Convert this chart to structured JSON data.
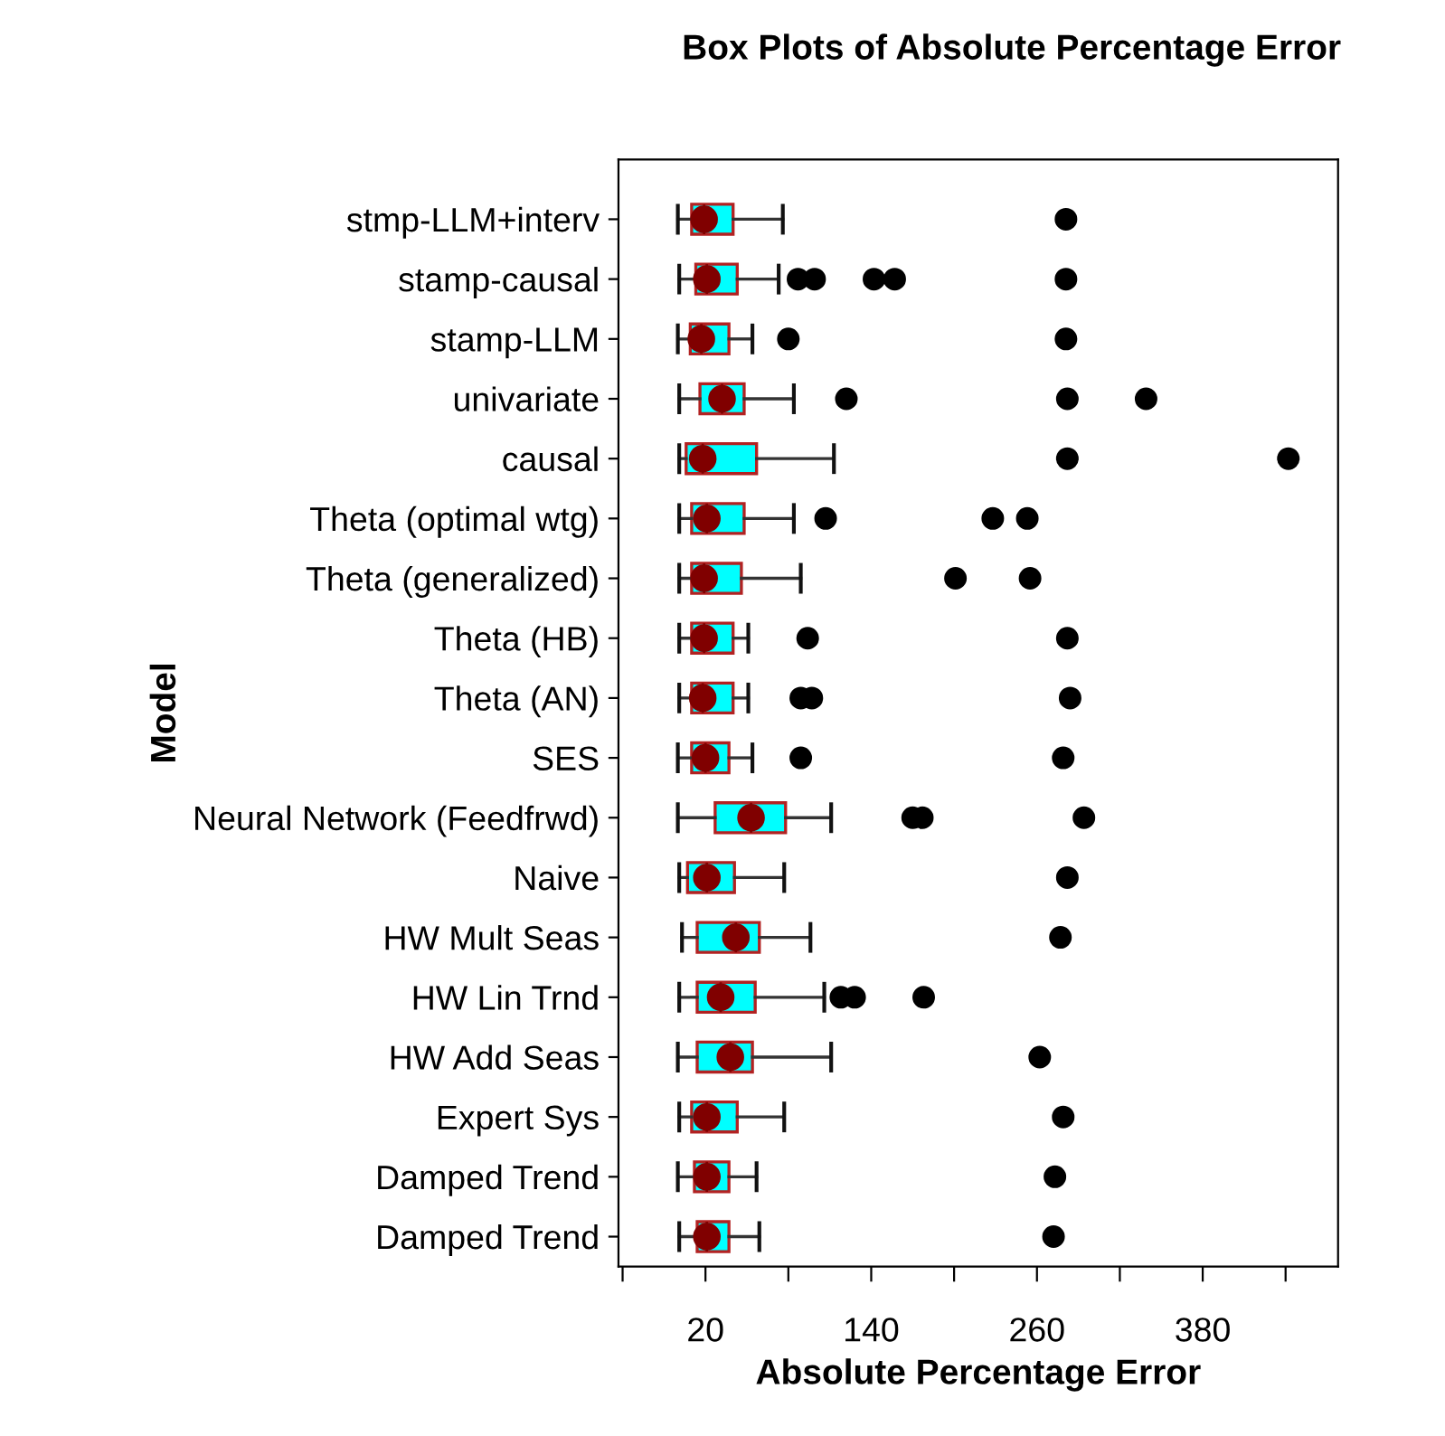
{
  "chart_data": {
    "type": "box",
    "title": "Box Plots of Absolute Percentage Error",
    "xlabel": "Absolute Percentage Error",
    "ylabel": "Model",
    "orientation": "horizontal",
    "categories": [
      "stmp-LLM+interv",
      "stamp-causal",
      "stamp-LLM",
      "univariate",
      "causal",
      "Theta (optimal wtg)",
      "Theta (generalized)",
      "Theta (HB)",
      "Theta (AN)",
      "SES",
      "Neural Network (Feedfrwd)",
      "Naive",
      "HW Mult Seas",
      "HW Lin Trnd",
      "HW Add Seas",
      "Expert Sys",
      "Damped Trend",
      "Damped Trend"
    ],
    "boxes": [
      {
        "low": 0,
        "q1": 10,
        "median": 19,
        "q3": 40,
        "high": 76,
        "mean": 19,
        "outliers": [
          281
        ]
      },
      {
        "low": 1,
        "q1": 13,
        "median": 21,
        "q3": 43,
        "high": 73,
        "mean": 21,
        "outliers": [
          87,
          99,
          142,
          157,
          281
        ]
      },
      {
        "low": 0,
        "q1": 9,
        "median": 17,
        "q3": 37,
        "high": 54,
        "mean": 17,
        "outliers": [
          80,
          281
        ]
      },
      {
        "low": 1,
        "q1": 16,
        "median": 32,
        "q3": 48,
        "high": 84,
        "mean": 32,
        "outliers": [
          122,
          282,
          339
        ]
      },
      {
        "low": 1,
        "q1": 6,
        "median": 18,
        "q3": 57,
        "high": 113,
        "mean": 18,
        "outliers": [
          282,
          442
        ]
      },
      {
        "low": 1,
        "q1": 10,
        "median": 21,
        "q3": 48,
        "high": 84,
        "mean": 21,
        "outliers": [
          107,
          228,
          253
        ]
      },
      {
        "low": 1,
        "q1": 10,
        "median": 19,
        "q3": 46,
        "high": 89,
        "mean": 19,
        "outliers": [
          201,
          255
        ]
      },
      {
        "low": 1,
        "q1": 10,
        "median": 19,
        "q3": 40,
        "high": 51,
        "mean": 19,
        "outliers": [
          94,
          282
        ]
      },
      {
        "low": 1,
        "q1": 10,
        "median": 18,
        "q3": 40,
        "high": 51,
        "mean": 18,
        "outliers": [
          89,
          97,
          284
        ]
      },
      {
        "low": 0,
        "q1": 10,
        "median": 20,
        "q3": 37,
        "high": 54,
        "mean": 20,
        "outliers": [
          89,
          279
        ]
      },
      {
        "low": 0,
        "q1": 27,
        "median": 53,
        "q3": 78,
        "high": 111,
        "mean": 53,
        "outliers": [
          170,
          177,
          294
        ]
      },
      {
        "low": 1,
        "q1": 7,
        "median": 21,
        "q3": 41,
        "high": 77,
        "mean": 21,
        "outliers": [
          282
        ]
      },
      {
        "low": 3,
        "q1": 14,
        "median": 42,
        "q3": 59,
        "high": 96,
        "mean": 42,
        "outliers": [
          277
        ]
      },
      {
        "low": 1,
        "q1": 14,
        "median": 31,
        "q3": 56,
        "high": 106,
        "mean": 31,
        "outliers": [
          118,
          128,
          178
        ]
      },
      {
        "low": 0,
        "q1": 14,
        "median": 38,
        "q3": 54,
        "high": 111,
        "mean": 38,
        "outliers": [
          262
        ]
      },
      {
        "low": 1,
        "q1": 10,
        "median": 21,
        "q3": 43,
        "high": 77,
        "mean": 21,
        "outliers": [
          279
        ]
      },
      {
        "low": 0,
        "q1": 12,
        "median": 21,
        "q3": 37,
        "high": 57,
        "mean": 21,
        "outliers": [
          273
        ]
      },
      {
        "low": 1,
        "q1": 14,
        "median": 21,
        "q3": 37,
        "high": 59,
        "mean": 21,
        "outliers": [
          272
        ]
      }
    ],
    "color": "#00ffff",
    "xlim": [
      -43,
      478
    ],
    "xticks": [
      {
        "value": -40,
        "label": null
      },
      20,
      {
        "value": 80,
        "label": null
      },
      140,
      {
        "value": 200,
        "label": null
      },
      260,
      {
        "value": 320,
        "label": null
      },
      380,
      {
        "value": 440,
        "label": null
      }
    ],
    "grid": false
  }
}
